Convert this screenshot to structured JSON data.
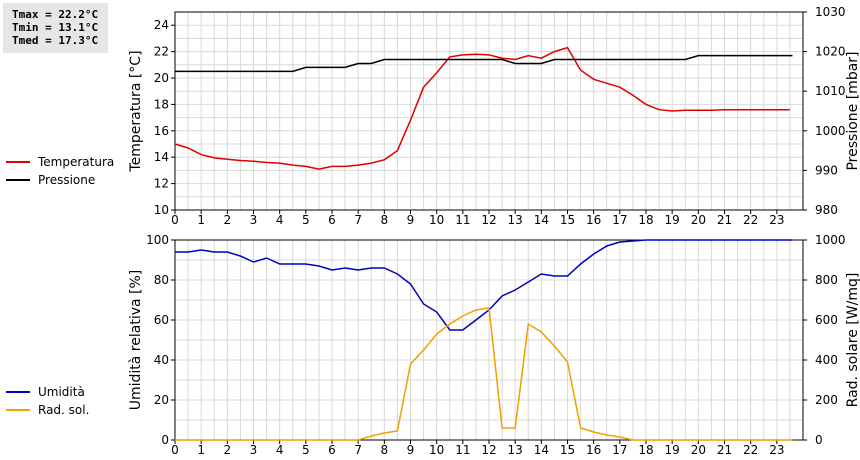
{
  "stats": {
    "tmax": "Tmax = 22.2°C",
    "tmin": "Tmin = 13.1°C",
    "tmed": "Tmed = 17.3°C"
  },
  "chart_data": [
    {
      "type": "line",
      "x_ticks": [
        0,
        1,
        2,
        3,
        4,
        5,
        6,
        7,
        8,
        9,
        10,
        11,
        12,
        13,
        14,
        15,
        16,
        17,
        18,
        19,
        20,
        21,
        22,
        23
      ],
      "xlim": [
        0,
        24
      ],
      "ylabel_left": "Temperatura [°C]",
      "ylabel_right": "Pressione [mbar]",
      "ylim_left": [
        10,
        25
      ],
      "yticks_left": [
        10,
        12,
        14,
        16,
        18,
        20,
        22,
        24
      ],
      "ylim_right": [
        980,
        1030
      ],
      "yticks_right": [
        980,
        990,
        1000,
        1010,
        1020,
        1030
      ],
      "grid": true,
      "legend_position": "left",
      "series": [
        {
          "name": "Temperatura",
          "axis": "left",
          "color": "#e00000",
          "x": [
            0,
            0.5,
            1,
            1.5,
            2,
            2.5,
            3,
            3.5,
            4,
            4.5,
            5,
            5.5,
            6,
            6.5,
            7,
            7.5,
            8,
            8.5,
            9,
            9.5,
            10,
            10.5,
            11,
            11.5,
            12,
            12.5,
            13,
            13.5,
            14,
            14.5,
            15,
            15.5,
            16,
            16.5,
            17,
            17.5,
            18,
            18.5,
            19,
            19.5,
            20,
            20.5,
            21,
            21.5,
            22,
            22.5,
            23,
            23.5
          ],
          "values": [
            15.0,
            14.7,
            14.2,
            13.95,
            13.85,
            13.75,
            13.7,
            13.6,
            13.55,
            13.4,
            13.3,
            13.1,
            13.3,
            13.3,
            13.4,
            13.55,
            13.8,
            14.5,
            16.8,
            19.3,
            20.4,
            21.6,
            21.75,
            21.8,
            21.75,
            21.5,
            21.4,
            21.7,
            21.5,
            22.0,
            22.3,
            20.6,
            19.9,
            19.6,
            19.3,
            18.7,
            18.0,
            17.6,
            17.5,
            17.55,
            17.55,
            17.55,
            17.6,
            17.6,
            17.6,
            17.6,
            17.6,
            17.6
          ]
        },
        {
          "name": "Pressione",
          "axis": "right",
          "color": "#000000",
          "x": [
            0,
            4.5,
            5,
            6.5,
            7,
            7.5,
            8,
            11,
            12.5,
            13,
            14,
            14.5,
            15,
            19.5,
            20,
            23.6
          ],
          "values": [
            1015,
            1015,
            1016,
            1016,
            1017,
            1017,
            1018,
            1018,
            1018,
            1017,
            1017,
            1018,
            1018,
            1018,
            1019,
            1019
          ]
        }
      ]
    },
    {
      "type": "line",
      "x_ticks": [
        0,
        1,
        2,
        3,
        4,
        5,
        6,
        7,
        8,
        9,
        10,
        11,
        12,
        13,
        14,
        15,
        16,
        17,
        18,
        19,
        20,
        21,
        22,
        23
      ],
      "xlim": [
        0,
        24
      ],
      "ylabel_left": "Umidità relativa [%]",
      "ylabel_right": "Rad. solare [W/mq]",
      "ylim_left": [
        0,
        100
      ],
      "yticks_left": [
        0,
        20,
        40,
        60,
        80,
        100
      ],
      "ylim_right": [
        0,
        1000
      ],
      "yticks_right": [
        0,
        200,
        400,
        600,
        800,
        1000
      ],
      "grid": true,
      "legend_position": "left",
      "series": [
        {
          "name": "Umidità",
          "axis": "left",
          "color": "#0000c0",
          "x": [
            0,
            0.5,
            1,
            1.5,
            2,
            2.5,
            3,
            3.5,
            4,
            4.5,
            5,
            5.5,
            6,
            6.5,
            7,
            7.5,
            8,
            8.5,
            9,
            9.5,
            10,
            10.5,
            11,
            11.5,
            12,
            12.5,
            13,
            13.5,
            14,
            14.5,
            15,
            15.5,
            16,
            16.5,
            17,
            17.5,
            18,
            19,
            20,
            21,
            22,
            23,
            23.6
          ],
          "values": [
            94,
            94,
            95,
            94,
            94,
            92,
            89,
            91,
            88,
            88,
            88,
            87,
            85,
            86,
            85,
            86,
            86,
            83,
            78,
            68,
            64,
            55,
            55,
            60,
            65,
            72,
            75,
            79,
            83,
            82,
            82,
            88,
            93,
            97,
            99,
            99.5,
            100,
            100,
            100,
            100,
            100,
            100,
            100
          ]
        },
        {
          "name": "Rad. sol.",
          "axis": "right",
          "color": "#f0a000",
          "x": [
            0,
            7,
            7.5,
            8,
            8.5,
            9,
            9.5,
            10,
            10.5,
            11,
            11.5,
            12,
            12.5,
            13,
            13.5,
            14,
            14.5,
            15,
            15.5,
            16,
            16.5,
            17,
            17.5,
            18,
            19,
            20,
            21,
            22,
            23,
            23.6
          ],
          "values": [
            0,
            0,
            20,
            35,
            45,
            380,
            450,
            530,
            580,
            620,
            650,
            660,
            60,
            60,
            580,
            540,
            470,
            390,
            60,
            40,
            25,
            15,
            0,
            0,
            0,
            0,
            0,
            0,
            0,
            0
          ]
        }
      ]
    }
  ]
}
